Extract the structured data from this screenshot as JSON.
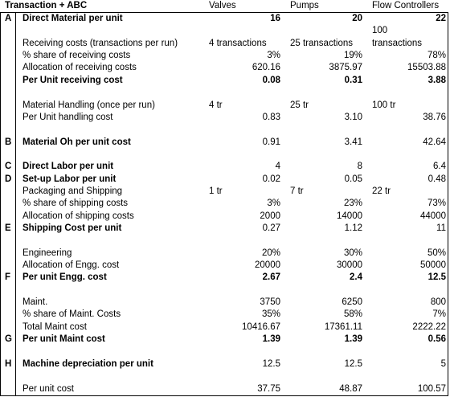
{
  "header": {
    "title": "Transaction + ABC",
    "col_valves": "Valves",
    "col_pumps": "Pumps",
    "col_flow": "Flow Controllers"
  },
  "rows": [
    {
      "code": "A",
      "label": "Direct Material per unit",
      "bold": true,
      "valves": "16",
      "pumps": "20",
      "flow": "22"
    },
    {
      "code": "",
      "label": "",
      "bold": false,
      "valves": "",
      "pumps": "",
      "flow": "100"
    },
    {
      "code": "",
      "label": "Receiving costs (transactions per run)",
      "bold": false,
      "valves": "4 transactions",
      "pumps": "25 transactions",
      "flow": "transactions",
      "text": true
    },
    {
      "code": "",
      "label": "% share of receiving costs",
      "bold": false,
      "valves": "3%",
      "pumps": "19%",
      "flow": "78%"
    },
    {
      "code": "",
      "label": "Allocation of receiving costs",
      "bold": false,
      "valves": "620.16",
      "pumps": "3875.97",
      "flow": "15503.88"
    },
    {
      "code": "",
      "label": "Per Unit receiving cost",
      "bold": true,
      "valves": "0.08",
      "pumps": "0.31",
      "flow": "3.88"
    },
    {
      "code": "",
      "label": "",
      "bold": false,
      "valves": "",
      "pumps": "",
      "flow": ""
    },
    {
      "code": "",
      "label": "Material Handling (once per run)",
      "bold": false,
      "valves": "4 tr",
      "pumps": "25 tr",
      "flow": "100 tr",
      "text": true
    },
    {
      "code": "",
      "label": "Per Unit handling cost",
      "bold": false,
      "valves": "0.83",
      "pumps": "3.10",
      "flow": "38.76"
    },
    {
      "code": "",
      "label": "",
      "bold": false,
      "valves": "",
      "pumps": "",
      "flow": ""
    },
    {
      "code": "B",
      "label": "Material Oh per unit cost",
      "bold": true,
      "valves": "0.91",
      "pumps": "3.41",
      "flow": "42.64",
      "valbold": false
    },
    {
      "code": "",
      "label": "",
      "bold": false,
      "valves": "",
      "pumps": "",
      "flow": ""
    },
    {
      "code": "C",
      "label": "Direct Labor per unit",
      "bold": true,
      "valves": "4",
      "pumps": "8",
      "flow": "6.4",
      "valbold": false
    },
    {
      "code": "D",
      "label": "Set-up Labor per unit",
      "bold": true,
      "valves": "0.02",
      "pumps": "0.05",
      "flow": "0.48",
      "valbold": false
    },
    {
      "code": "",
      "label": "Packaging and Shipping",
      "bold": false,
      "valves": "1 tr",
      "pumps": "7 tr",
      "flow": "22 tr",
      "text": true
    },
    {
      "code": "",
      "label": "% share of shipping costs",
      "bold": false,
      "valves": "3%",
      "pumps": "23%",
      "flow": "73%"
    },
    {
      "code": "",
      "label": "Allocation of shipping costs",
      "bold": false,
      "valves": "2000",
      "pumps": "14000",
      "flow": "44000"
    },
    {
      "code": "E",
      "label": "Shipping Cost per unit",
      "bold": true,
      "valves": "0.27",
      "pumps": "1.12",
      "flow": "11",
      "valbold": false
    },
    {
      "code": "",
      "label": "",
      "bold": false,
      "valves": "",
      "pumps": "",
      "flow": ""
    },
    {
      "code": "",
      "label": "Engineering",
      "bold": false,
      "valves": "20%",
      "pumps": "30%",
      "flow": "50%"
    },
    {
      "code": "",
      "label": "Allocation of Engg. cost",
      "bold": false,
      "valves": "20000",
      "pumps": "30000",
      "flow": "50000"
    },
    {
      "code": "F",
      "label": "Per unit Engg. cost",
      "bold": true,
      "valves": "2.67",
      "pumps": "2.4",
      "flow": "12.5",
      "valbold": true
    },
    {
      "code": "",
      "label": "",
      "bold": false,
      "valves": "",
      "pumps": "",
      "flow": ""
    },
    {
      "code": "",
      "label": "Maint.",
      "bold": false,
      "valves": "3750",
      "pumps": "6250",
      "flow": "800"
    },
    {
      "code": "",
      "label": "% share of Maint. Costs",
      "bold": false,
      "valves": "35%",
      "pumps": "58%",
      "flow": "7%"
    },
    {
      "code": "",
      "label": "Total Maint cost",
      "bold": false,
      "valves": "10416.67",
      "pumps": "17361.11",
      "flow": "2222.22"
    },
    {
      "code": "G",
      "label": "Per unit Maint cost",
      "bold": true,
      "valves": "1.39",
      "pumps": "1.39",
      "flow": "0.56",
      "valbold": true
    },
    {
      "code": "",
      "label": "",
      "bold": false,
      "valves": "",
      "pumps": "",
      "flow": ""
    },
    {
      "code": "H",
      "label": "Machine depreciation per unit",
      "bold": true,
      "valves": "12.5",
      "pumps": "12.5",
      "flow": "5",
      "valbold": false
    },
    {
      "code": "",
      "label": "",
      "bold": false,
      "valves": "",
      "pumps": "",
      "flow": ""
    },
    {
      "code": "",
      "label": "Per unit cost",
      "bold": false,
      "valves": "37.75",
      "pumps": "48.87",
      "flow": "100.57"
    }
  ]
}
